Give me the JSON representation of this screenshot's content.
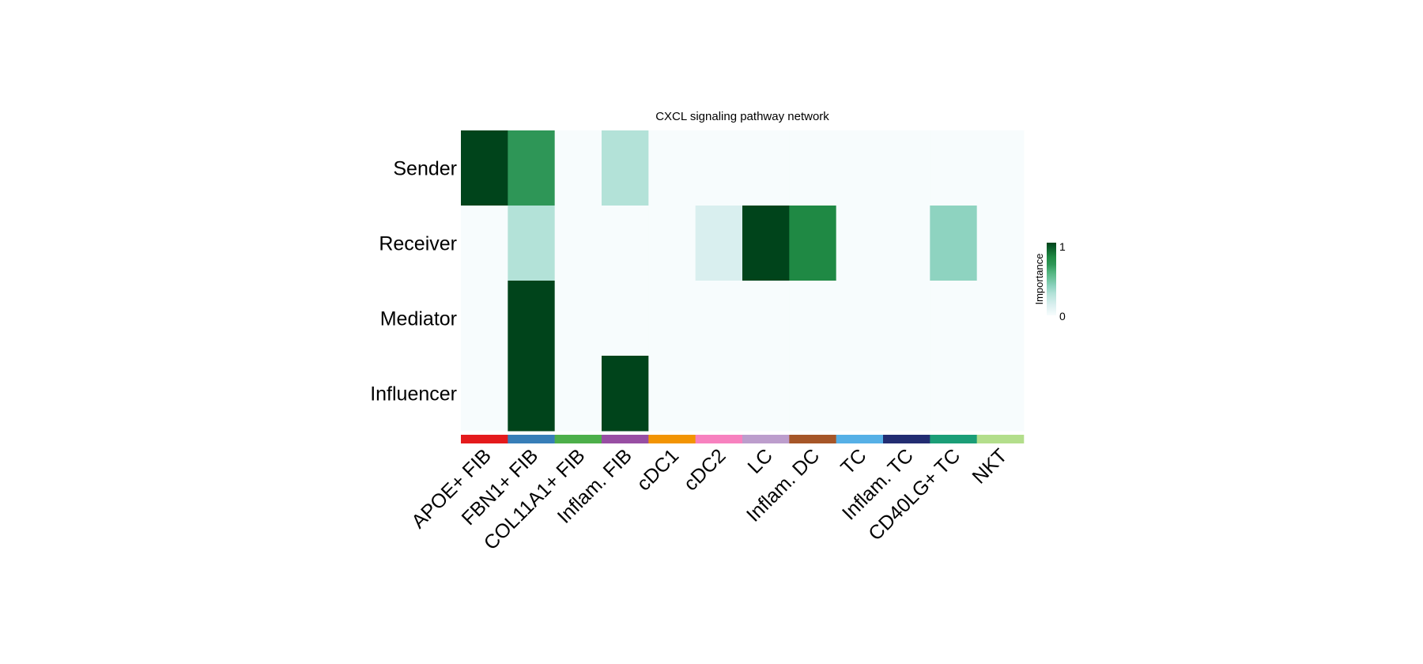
{
  "chart_data": {
    "type": "heatmap",
    "title": "CXCL signaling pathway network",
    "rows": [
      "Sender",
      "Receiver",
      "Mediator",
      "Influencer"
    ],
    "columns": [
      "APOE+ FIB",
      "FBN1+ FIB",
      "COL11A1+ FIB",
      "Inflam. FIB",
      "cDC1",
      "cDC2",
      "LC",
      "Inflam. DC",
      "TC",
      "Inflam. TC",
      "CD40LG+ TC",
      "NKT"
    ],
    "column_colors": [
      "#e41a1c",
      "#377eb8",
      "#4daf4a",
      "#984ea3",
      "#f29403",
      "#f781bf",
      "#bc9dcc",
      "#a65628",
      "#56b0e6",
      "#232d72",
      "#1b9e77",
      "#b3de8b"
    ],
    "values": [
      [
        1,
        0.7,
        0,
        0.3,
        0,
        0,
        0,
        0,
        0,
        0,
        0,
        0
      ],
      [
        0,
        0.3,
        0,
        0,
        0,
        0.15,
        1,
        0.8,
        0,
        0,
        0.4,
        0
      ],
      [
        0,
        1,
        0,
        0,
        0,
        0,
        0,
        0,
        0,
        0,
        0,
        0
      ],
      [
        0,
        1,
        0,
        1,
        0,
        0,
        0,
        0,
        0,
        0,
        0,
        0
      ]
    ],
    "legend": {
      "title": "Importance",
      "min_label": "0",
      "max_label": "1",
      "range": [
        0,
        1
      ],
      "placement": "right"
    },
    "colormap": [
      [
        0,
        "#f7fcfd"
      ],
      [
        0.15,
        "#d9efef"
      ],
      [
        0.3,
        "#b3e2d8"
      ],
      [
        0.4,
        "#8ed3c0"
      ],
      [
        0.6,
        "#4fb37c"
      ],
      [
        0.7,
        "#2e9657"
      ],
      [
        0.8,
        "#1f8944"
      ],
      [
        1,
        "#00441b"
      ]
    ]
  }
}
